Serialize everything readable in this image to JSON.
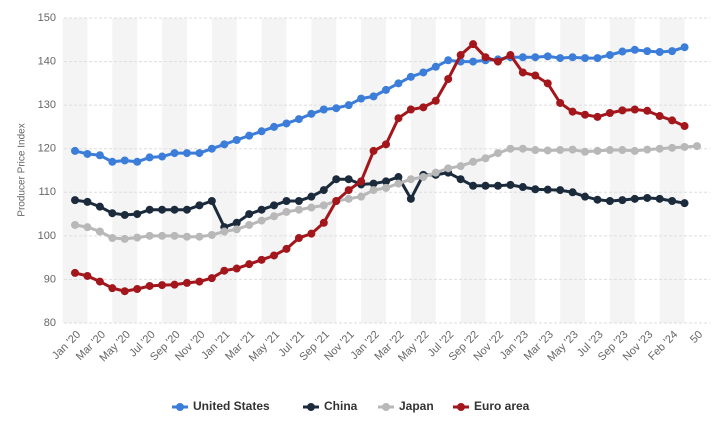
{
  "chart_data": {
    "type": "line",
    "y_label": "Producer Price Index",
    "categories": [
      "Jan '20",
      null,
      "Mar '20",
      null,
      "May '20",
      null,
      "Jul '20",
      null,
      "Sep '20",
      null,
      "Nov '20",
      null,
      "Jan '21",
      null,
      "Mar '21",
      null,
      "May '21",
      null,
      "Jul '21",
      null,
      "Sep '21",
      null,
      "Nov '21",
      null,
      "Jan '22",
      null,
      "Mar '22",
      null,
      "May '22",
      null,
      "Jul '22",
      null,
      "Sep '22",
      null,
      "Nov '22",
      null,
      "Jan '23",
      null,
      "Mar '23",
      null,
      "May '23",
      null,
      "Jul '23",
      null,
      "Sep '23",
      null,
      "Nov '23",
      null,
      "Feb '24",
      null,
      "50"
    ],
    "ylim": [
      80,
      150
    ],
    "yticks": [
      80,
      90,
      100,
      110,
      120,
      130,
      140,
      150
    ],
    "grid": true,
    "legend": "bottom",
    "series": [
      {
        "name": "United States",
        "color": "#3b7dd8",
        "values": [
          119.5,
          118.8,
          118.5,
          117,
          117.3,
          117,
          118,
          118.2,
          119,
          119,
          119,
          120,
          121,
          122,
          123,
          124,
          125,
          125.8,
          126.8,
          128,
          129,
          129.3,
          130,
          131.5,
          132,
          133.5,
          135,
          136.5,
          137.5,
          138.8,
          140.3,
          140,
          140,
          140.3,
          140.5,
          141,
          141,
          141,
          141.2,
          140.8,
          141,
          140.8,
          140.8,
          141.5,
          142.3,
          142.7,
          142.4,
          142.2,
          142.4,
          143.3,
          null
        ]
      },
      {
        "name": "China",
        "color": "#1b2b3c",
        "values": [
          108.2,
          107.8,
          106.7,
          105.2,
          104.8,
          105,
          106,
          106,
          106,
          106,
          107,
          108,
          102,
          103,
          105,
          106,
          107,
          108,
          108,
          109,
          110.5,
          113,
          113,
          111.8,
          112,
          112.5,
          113.5,
          108.5,
          114,
          114,
          114.5,
          113,
          111.5,
          111.5,
          111.5,
          111.7,
          111.2,
          110.7,
          110.6,
          110.5,
          110,
          109,
          108.3,
          108,
          108.2,
          108.5,
          108.7,
          108.5,
          108,
          107.5,
          null
        ]
      },
      {
        "name": "Japan",
        "color": "#b8b8b8",
        "values": [
          102.5,
          102,
          101,
          99.5,
          99.3,
          99.6,
          100,
          100,
          100,
          99.8,
          99.8,
          100.2,
          101,
          101.5,
          102.5,
          103.5,
          104.5,
          105.5,
          106,
          106.5,
          107,
          108,
          108.5,
          109,
          110.5,
          111,
          112,
          113,
          113.5,
          114.5,
          115.5,
          116,
          117,
          117.8,
          119,
          120,
          120,
          119.7,
          119.6,
          119.7,
          119.8,
          119.3,
          119.5,
          119.7,
          119.7,
          119.5,
          119.8,
          120,
          120.2,
          120.4,
          120.6
        ]
      },
      {
        "name": "Euro area",
        "color": "#a3161c",
        "values": [
          91.5,
          90.8,
          89.5,
          88,
          87.3,
          87.8,
          88.5,
          88.7,
          88.8,
          89.2,
          89.5,
          90.3,
          92,
          92.5,
          93.5,
          94.5,
          95.5,
          97,
          99.5,
          100.5,
          103,
          108,
          110.5,
          112.5,
          119.5,
          121,
          127,
          129,
          129.5,
          131,
          136,
          141.5,
          144,
          141,
          140,
          141.5,
          137.5,
          136.8,
          135,
          130.5,
          128.5,
          127.8,
          127.3,
          128.2,
          128.8,
          129,
          128.7,
          127.5,
          126.5,
          125.2,
          null
        ]
      }
    ]
  }
}
